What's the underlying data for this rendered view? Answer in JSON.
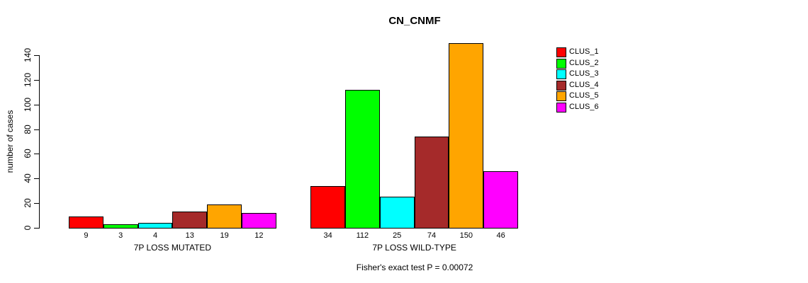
{
  "title": "CN_CNMF",
  "footer": "Fisher's exact test P = 0.00072",
  "chart_data": {
    "type": "bar",
    "title": "CN_CNMF",
    "ylabel": "number of cases",
    "xlabel": "",
    "annotation": "Fisher's exact test P = 0.00072",
    "groups": [
      {
        "label": "7P LOSS MUTATED",
        "values": [
          9,
          3,
          4,
          13,
          19,
          12
        ]
      },
      {
        "label": "7P LOSS WILD-TYPE",
        "values": [
          34,
          112,
          25,
          74,
          150,
          46
        ]
      }
    ],
    "series": [
      {
        "name": "CLUS_1",
        "color": "#FF0000"
      },
      {
        "name": "CLUS_2",
        "color": "#00FF00"
      },
      {
        "name": "CLUS_3",
        "color": "#00FFFF"
      },
      {
        "name": "CLUS_4",
        "color": "#A52A2A"
      },
      {
        "name": "CLUS_5",
        "color": "#FFA500"
      },
      {
        "name": "CLUS_6",
        "color": "#FF00FF"
      }
    ],
    "yticks": [
      0,
      20,
      40,
      60,
      80,
      100,
      120,
      140
    ],
    "ylim": [
      0,
      150
    ],
    "grid": false,
    "legend_position": "right",
    "bar_border_color": "#000000",
    "axis_color": "#000000"
  }
}
